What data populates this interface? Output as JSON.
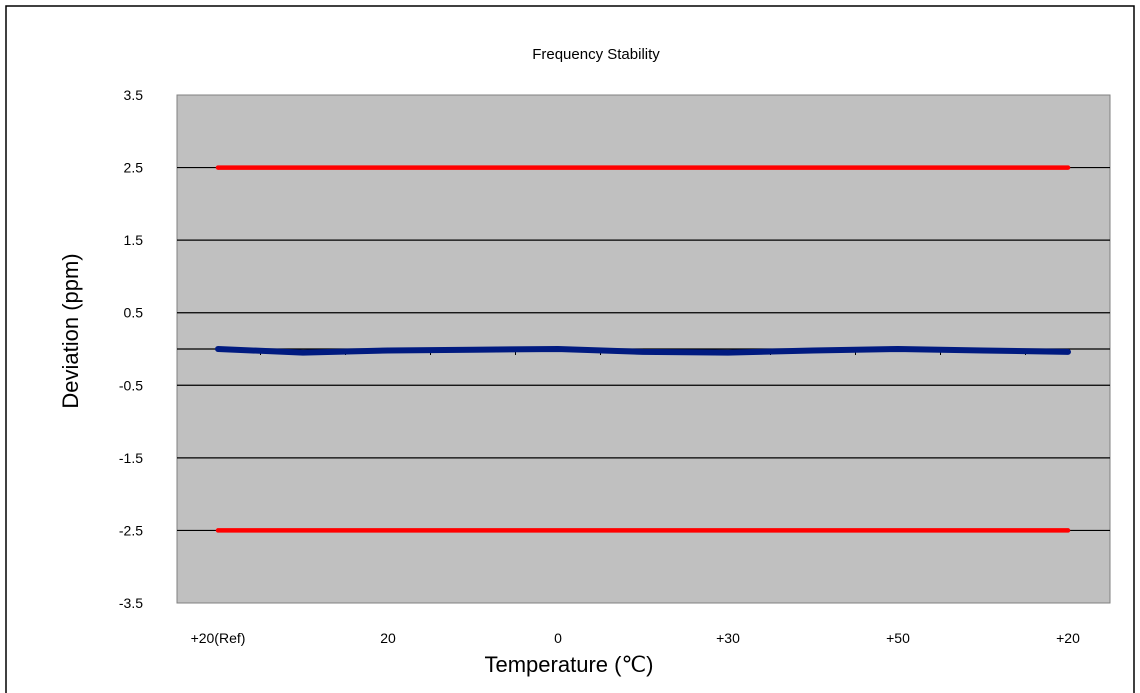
{
  "chart_data": {
    "type": "line",
    "title": "Frequency Stability",
    "xlabel": "Temperature (℃)",
    "ylabel": "Deviation (ppm)",
    "categories": [
      "+20(Ref)",
      "",
      "20",
      "",
      "0",
      "",
      "+30",
      "",
      "+50",
      "",
      "+20"
    ],
    "ylim": [
      -3.5,
      3.5
    ],
    "yticks": [
      "3.5",
      "2.5",
      "1.5",
      "0.5",
      "-0.5",
      "-1.5",
      "-2.5",
      "-3.5"
    ],
    "grid": true,
    "legend": "none",
    "series": [
      {
        "values": [
          2.5,
          2.5,
          2.5,
          2.5,
          2.5,
          2.5,
          2.5,
          2.5,
          2.5,
          2.5,
          2.5
        ],
        "color": "#ff0000"
      },
      {
        "values": [
          -2.5,
          -2.5,
          -2.5,
          -2.5,
          -2.5,
          -2.5,
          -2.5,
          -2.5,
          -2.5,
          -2.5,
          -2.5
        ],
        "color": "#ff0000"
      },
      {
        "values": [
          0.0,
          -0.05,
          -0.02,
          -0.01,
          0.0,
          -0.04,
          -0.05,
          -0.02,
          0.0,
          -0.02,
          -0.04
        ],
        "color": "#001a80"
      }
    ],
    "colors": {
      "plot_bg": "#c0c0c0",
      "grid": "#000000",
      "limit": "#ff0000",
      "measured": "#001a80"
    }
  }
}
